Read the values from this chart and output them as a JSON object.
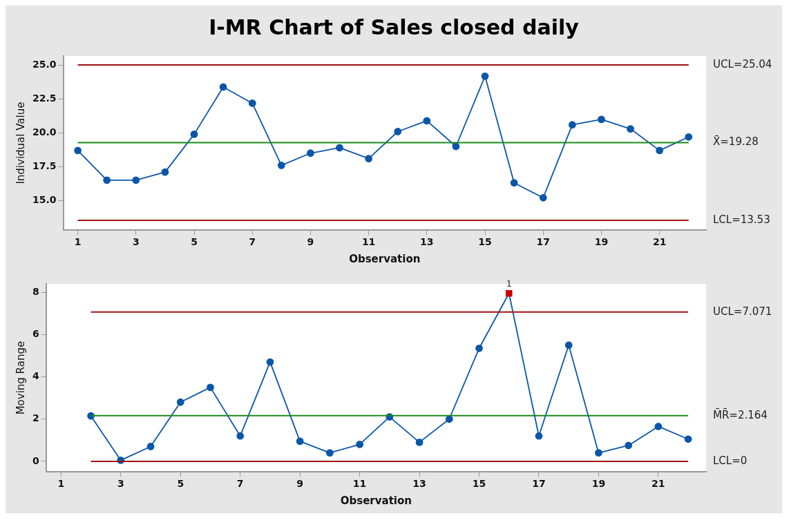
{
  "chart_data": [
    {
      "type": "line",
      "title": "I-MR Chart of Sales closed daily",
      "xlabel": "Observation",
      "ylabel": "Individual Value",
      "x": [
        1,
        2,
        3,
        4,
        5,
        6,
        7,
        8,
        9,
        10,
        11,
        12,
        13,
        14,
        15,
        16,
        17,
        18,
        19,
        20,
        21,
        22
      ],
      "series": [
        {
          "color": "#0b56a8",
          "values": [
            18.7,
            16.5,
            16.5,
            17.1,
            19.9,
            23.4,
            22.2,
            17.6,
            18.5,
            18.9,
            18.1,
            20.1,
            20.9,
            19.0,
            24.2,
            16.3,
            15.2,
            20.6,
            21.0,
            20.3,
            18.7,
            19.7
          ]
        }
      ],
      "xlim": [
        0.5,
        22.6
      ],
      "xticks": [
        1,
        3,
        5,
        7,
        9,
        11,
        13,
        15,
        17,
        19,
        21
      ],
      "ylim": [
        12.8,
        25.7
      ],
      "yticks": [
        {
          "value": 15,
          "label": "15.0"
        },
        {
          "value": 17.5,
          "label": "17.5"
        },
        {
          "value": 20,
          "label": "20.0"
        },
        {
          "value": 22.5,
          "label": "22.5"
        },
        {
          "value": 25,
          "label": "25.0"
        }
      ],
      "ref_lines": [
        {
          "axis": "y",
          "value": 25.04,
          "label": "UCL=25.04",
          "color": "#a01010"
        },
        {
          "axis": "y",
          "value": 19.28,
          "label": "X̄=19.28",
          "color": "#1b8a1b"
        },
        {
          "axis": "y",
          "value": 13.53,
          "label": "LCL=13.53",
          "color": "#a01010"
        }
      ],
      "grid": false,
      "legend": false,
      "marker": "circle",
      "line_style": "solid"
    },
    {
      "type": "line",
      "xlabel": "Observation",
      "ylabel": "Moving Range",
      "x": [
        2,
        3,
        4,
        5,
        6,
        7,
        8,
        9,
        10,
        11,
        12,
        13,
        14,
        15,
        16,
        17,
        18,
        19,
        20,
        21,
        22
      ],
      "series": [
        {
          "color": "#0b56a8",
          "colors": [
            "#0b56a8",
            "#0b56a8",
            "#0b56a8",
            "#0b56a8",
            "#0b56a8",
            "#0b56a8",
            "#0b56a8",
            "#0b56a8",
            "#0b56a8",
            "#0b56a8",
            "#0b56a8",
            "#0b56a8",
            "#0b56a8",
            "#0b56a8",
            "#cc0000",
            "#0b56a8",
            "#0b56a8",
            "#0b56a8",
            "#0b56a8",
            "#0b56a8",
            "#0b56a8"
          ],
          "values": [
            2.15,
            0.05,
            0.7,
            2.8,
            3.5,
            1.2,
            4.7,
            0.95,
            0.4,
            0.8,
            2.1,
            0.9,
            2.0,
            5.35,
            7.95,
            1.2,
            5.5,
            0.4,
            0.75,
            1.65,
            1.05
          ]
        }
      ],
      "xlim": [
        0.5,
        22.6
      ],
      "xticks": [
        1,
        3,
        5,
        7,
        9,
        11,
        13,
        15,
        17,
        19,
        21
      ],
      "ylim": [
        -0.5,
        8.4
      ],
      "yticks": [
        0,
        2,
        4,
        6,
        8
      ],
      "ref_lines": [
        {
          "axis": "y",
          "value": 7.071,
          "label": "UCL=7.071",
          "color": "#a01010"
        },
        {
          "axis": "y",
          "value": 2.164,
          "label": "M̄R̄=2.164",
          "color": "#1b8a1b"
        },
        {
          "axis": "y",
          "value": 0,
          "label": "LCL=0",
          "color": "#a01010"
        }
      ],
      "annotations": [
        {
          "text": "1",
          "x": 16,
          "y": 7.95
        }
      ],
      "grid": false,
      "legend": false,
      "marker": "circle",
      "line_style": "solid"
    }
  ]
}
